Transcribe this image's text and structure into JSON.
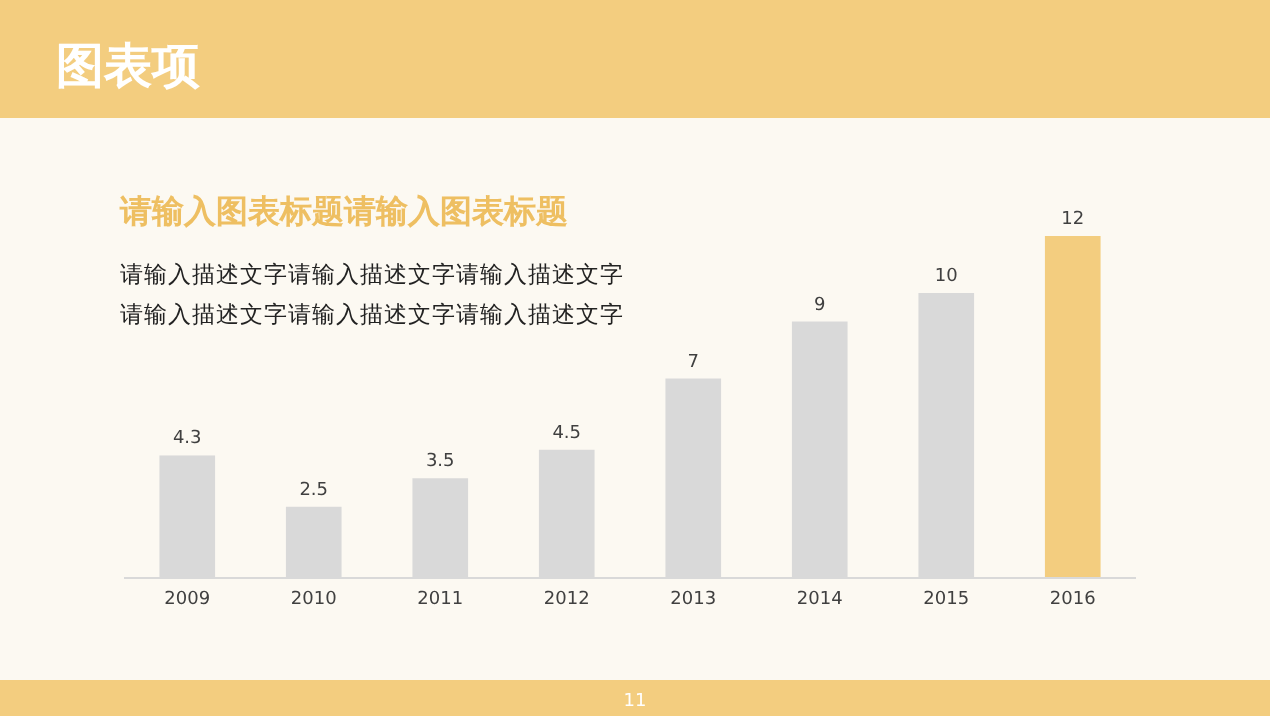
{
  "chart_data": {
    "type": "bar",
    "title": "请输入图表标题请输入图表标题",
    "categories": [
      "2009",
      "2010",
      "2011",
      "2012",
      "2013",
      "2014",
      "2015",
      "2016"
    ],
    "values": [
      4.3,
      2.5,
      3.5,
      4.5,
      7,
      9,
      10,
      12
    ],
    "colors": [
      "#d9d9d9",
      "#d9d9d9",
      "#d9d9d9",
      "#d9d9d9",
      "#d9d9d9",
      "#d9d9d9",
      "#d9d9d9",
      "#f3cd7f"
    ],
    "data_labels": true,
    "annotations": [
      "图表项",
      "请输入描述文字请输入描述文字请输入描述文字",
      "请输入描述文字请输入描述文字请输入描述文字",
      "11"
    ]
  }
}
